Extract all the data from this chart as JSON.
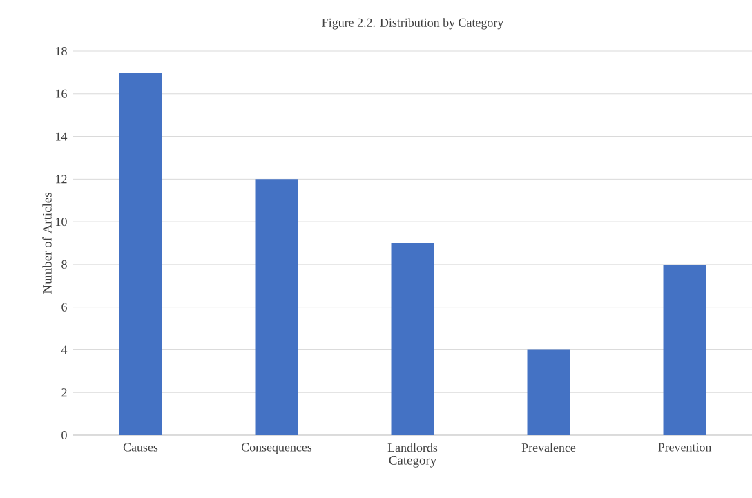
{
  "chart_data": {
    "type": "bar",
    "title": "Figure 2.2. Distribution by Category",
    "xlabel": "Category",
    "ylabel": "Number of Articles",
    "categories": [
      "Causes",
      "Consequences",
      "Landlords",
      "Prevalence",
      "Prevention"
    ],
    "values": [
      17,
      12,
      9,
      4,
      8
    ],
    "color": "#4472c4",
    "ylim": [
      0,
      18
    ],
    "yticks": [
      0,
      2,
      4,
      6,
      8,
      10,
      12,
      14,
      16,
      18
    ],
    "grid": "y"
  }
}
